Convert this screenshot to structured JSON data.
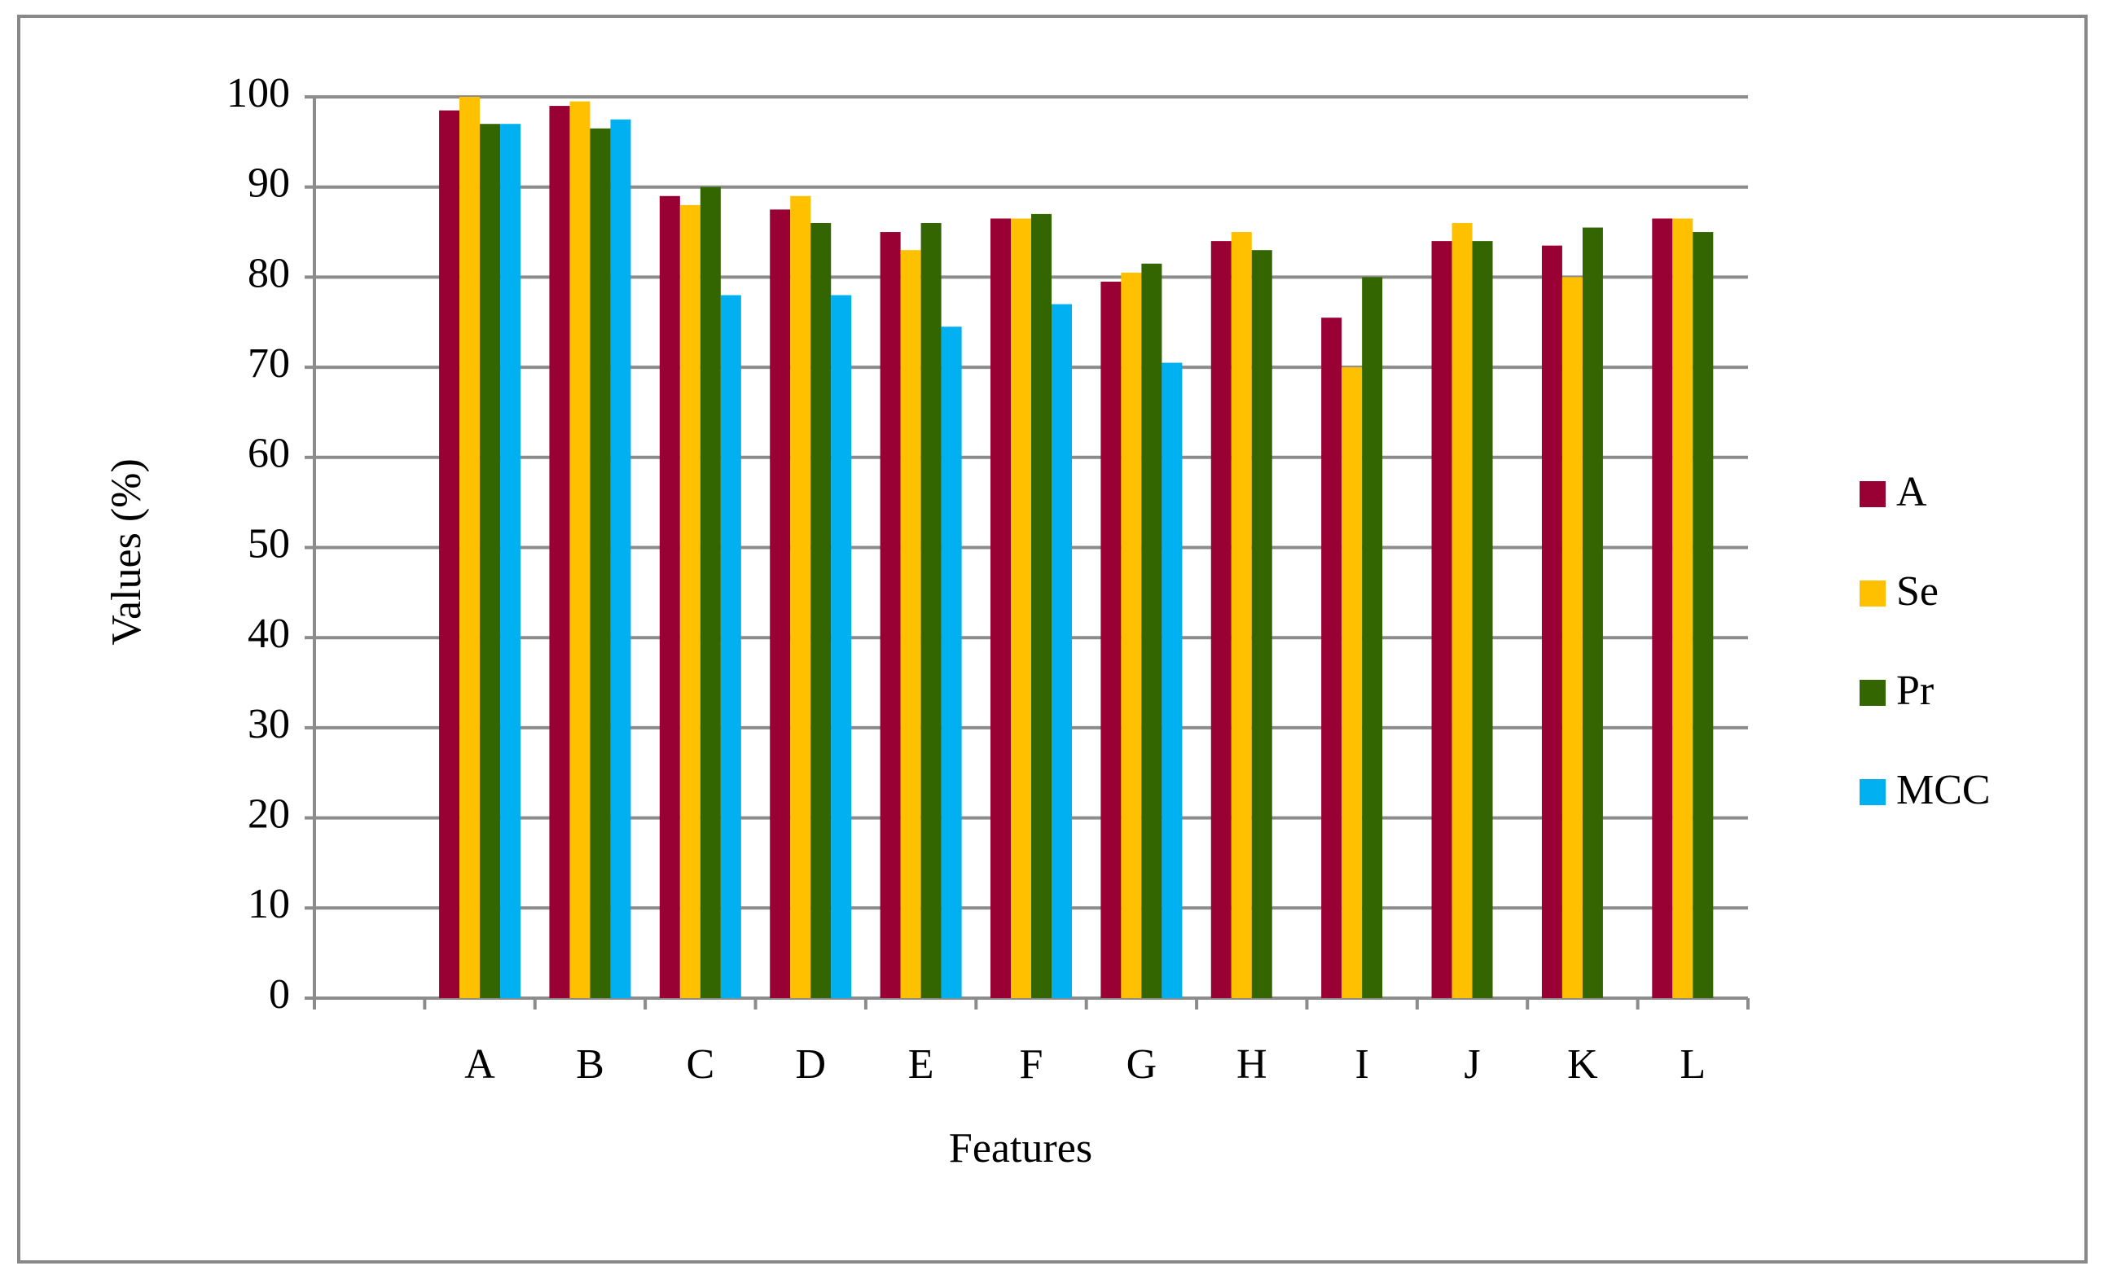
{
  "chart_data": {
    "type": "bar",
    "y_label": "Values (%)",
    "x_label": "Features",
    "categories": [
      null,
      "A",
      "B",
      "C",
      "D",
      "E",
      "F",
      "G",
      "H",
      "I",
      "J",
      "K",
      "L"
    ],
    "series": [
      {
        "name": "A",
        "color": "#990033",
        "values": [
          null,
          98.5,
          99,
          89,
          87.5,
          85,
          86.5,
          79.5,
          84,
          75.5,
          84,
          83.5,
          86.5
        ]
      },
      {
        "name": "Se",
        "color": "#ffc000",
        "values": [
          null,
          100,
          99.5,
          88,
          89,
          83,
          86.5,
          80.5,
          85,
          70,
          86,
          80,
          86.5
        ]
      },
      {
        "name": "Pr",
        "color": "#336600",
        "values": [
          null,
          97,
          96.5,
          90,
          86,
          86,
          87,
          81.5,
          83,
          80,
          84,
          85.5,
          85
        ]
      },
      {
        "name": "MCC",
        "color": "#00b0f0",
        "values": [
          null,
          97,
          97.5,
          78,
          78,
          74.5,
          77,
          70.5,
          null,
          null,
          null,
          null,
          null
        ]
      }
    ],
    "ylim": [
      0,
      100
    ],
    "yticks": [
      0,
      10,
      20,
      30,
      40,
      50,
      60,
      70,
      80,
      90,
      100
    ],
    "grid": true,
    "legend": "right"
  }
}
